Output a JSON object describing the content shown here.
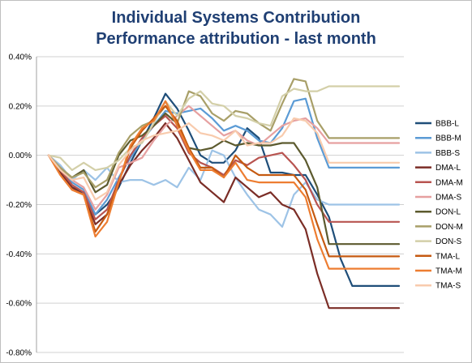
{
  "chart_data": {
    "type": "line",
    "title": "Individual Systems Contribution",
    "subtitle": "Performance attribution - last month",
    "xlabel": "",
    "ylabel": "",
    "ylim": [
      -0.8,
      0.4
    ],
    "yticks": [
      "0.40%",
      "0.20%",
      "0.00%",
      "-0.20%",
      "-0.40%",
      "-0.60%",
      "-0.80%"
    ],
    "ytick_values": [
      0.4,
      0.2,
      0.0,
      -0.2,
      -0.4,
      -0.6,
      -0.8
    ],
    "x": [
      1,
      2,
      3,
      4,
      5,
      6,
      7,
      8,
      9,
      10,
      11,
      12,
      13,
      14,
      15,
      16,
      17,
      18,
      19,
      20,
      21,
      22,
      23,
      24,
      25,
      26,
      27,
      28,
      29,
      30,
      31
    ],
    "grid": "horizontal",
    "legend_position": "right",
    "series": [
      {
        "name": "BBB-L",
        "color": "#1F4E79",
        "values": [
          0,
          -0.07,
          -0.13,
          -0.15,
          -0.24,
          -0.2,
          -0.13,
          -0.03,
          0.06,
          0.15,
          0.25,
          0.19,
          0.1,
          0.0,
          -0.03,
          -0.03,
          0.02,
          0.11,
          0.07,
          -0.07,
          -0.07,
          -0.08,
          -0.08,
          -0.16,
          -0.25,
          -0.42,
          -0.53,
          -0.53,
          -0.53,
          -0.53,
          -0.53
        ]
      },
      {
        "name": "BBB-M",
        "color": "#5B9BD5",
        "values": [
          0,
          -0.06,
          -0.11,
          -0.14,
          -0.24,
          -0.18,
          -0.09,
          -0.01,
          0.06,
          0.12,
          0.18,
          0.17,
          0.18,
          0.19,
          0.15,
          0.1,
          0.12,
          0.1,
          0.06,
          0.05,
          0.11,
          0.22,
          0.23,
          0.07,
          -0.05,
          -0.05,
          -0.05,
          -0.05,
          -0.05,
          -0.05,
          -0.05
        ]
      },
      {
        "name": "BBB-S",
        "color": "#9DC3E6",
        "values": [
          0,
          -0.04,
          -0.1,
          -0.06,
          -0.1,
          -0.05,
          -0.11,
          -0.1,
          -0.1,
          -0.12,
          -0.1,
          -0.13,
          -0.05,
          -0.1,
          0.02,
          0.0,
          -0.09,
          -0.16,
          -0.22,
          -0.24,
          -0.29,
          -0.16,
          -0.11,
          -0.18,
          -0.2,
          -0.2,
          -0.2,
          -0.2,
          -0.2,
          -0.2,
          -0.2
        ]
      },
      {
        "name": "DMA-L",
        "color": "#7B2D26",
        "values": [
          0,
          -0.07,
          -0.13,
          -0.16,
          -0.28,
          -0.24,
          -0.12,
          -0.04,
          0.02,
          0.07,
          0.13,
          0.07,
          -0.02,
          -0.11,
          -0.15,
          -0.19,
          -0.09,
          -0.13,
          -0.17,
          -0.15,
          -0.2,
          -0.22,
          -0.3,
          -0.48,
          -0.62,
          -0.62,
          -0.62,
          -0.62,
          -0.62,
          -0.62,
          -0.62
        ]
      },
      {
        "name": "DMA-M",
        "color": "#B85450",
        "values": [
          0,
          -0.06,
          -0.12,
          -0.15,
          -0.26,
          -0.22,
          -0.1,
          0.0,
          0.07,
          0.12,
          0.16,
          0.11,
          0.01,
          -0.03,
          -0.05,
          -0.08,
          -0.02,
          -0.04,
          -0.01,
          0.0,
          0.01,
          -0.04,
          -0.1,
          -0.2,
          -0.27,
          -0.27,
          -0.27,
          -0.27,
          -0.27,
          -0.27,
          -0.27
        ]
      },
      {
        "name": "DMA-S",
        "color": "#E6A0A0",
        "values": [
          0,
          -0.05,
          -0.1,
          -0.13,
          -0.22,
          -0.16,
          -0.05,
          -0.03,
          -0.01,
          0.06,
          0.12,
          0.16,
          0.2,
          0.16,
          0.12,
          0.08,
          0.1,
          0.06,
          0.04,
          0.08,
          0.12,
          0.14,
          0.15,
          0.11,
          0.05,
          0.05,
          0.05,
          0.05,
          0.05,
          0.05,
          0.05
        ]
      },
      {
        "name": "DON-L",
        "color": "#5C5A2E",
        "values": [
          0,
          -0.06,
          -0.09,
          -0.06,
          -0.15,
          -0.12,
          0.0,
          0.06,
          0.08,
          0.12,
          0.17,
          0.13,
          0.03,
          0.02,
          0.03,
          0.06,
          0.04,
          0.05,
          0.04,
          0.04,
          0.05,
          0.05,
          -0.02,
          -0.13,
          -0.36,
          -0.36,
          -0.36,
          -0.36,
          -0.36,
          -0.36,
          -0.36
        ]
      },
      {
        "name": "DON-M",
        "color": "#A89F68",
        "values": [
          0,
          -0.05,
          -0.09,
          -0.07,
          -0.13,
          -0.1,
          0.01,
          0.08,
          0.12,
          0.14,
          0.2,
          0.13,
          0.26,
          0.24,
          0.17,
          0.14,
          0.18,
          0.17,
          0.13,
          0.1,
          0.21,
          0.31,
          0.3,
          0.14,
          0.07,
          0.07,
          0.07,
          0.07,
          0.07,
          0.07,
          0.07
        ]
      },
      {
        "name": "DON-S",
        "color": "#D3CFA8",
        "values": [
          0,
          -0.01,
          -0.06,
          -0.03,
          -0.06,
          -0.05,
          -0.02,
          0.03,
          0.05,
          0.13,
          0.22,
          0.16,
          0.23,
          0.26,
          0.21,
          0.2,
          0.16,
          0.15,
          0.13,
          0.12,
          0.24,
          0.27,
          0.26,
          0.26,
          0.28,
          0.28,
          0.28,
          0.28,
          0.28,
          0.28,
          0.28
        ]
      },
      {
        "name": "TMA-L",
        "color": "#C55A11",
        "values": [
          0,
          -0.08,
          -0.14,
          -0.16,
          -0.31,
          -0.24,
          -0.11,
          0.03,
          0.1,
          0.15,
          0.2,
          0.14,
          0.03,
          -0.05,
          -0.05,
          -0.09,
          0.0,
          -0.05,
          -0.08,
          -0.08,
          -0.08,
          -0.08,
          -0.14,
          -0.28,
          -0.41,
          -0.41,
          -0.41,
          -0.41,
          -0.41,
          -0.41,
          -0.41
        ]
      },
      {
        "name": "TMA-M",
        "color": "#ED7D31",
        "values": [
          0,
          -0.08,
          -0.14,
          -0.16,
          -0.33,
          -0.27,
          -0.11,
          0.04,
          0.11,
          0.14,
          0.22,
          0.12,
          0.02,
          -0.06,
          -0.06,
          -0.09,
          -0.03,
          -0.1,
          -0.11,
          -0.11,
          -0.11,
          -0.11,
          -0.17,
          -0.34,
          -0.46,
          -0.46,
          -0.46,
          -0.46,
          -0.46,
          -0.46,
          -0.46
        ]
      },
      {
        "name": "TMA-S",
        "color": "#F8CBAD",
        "values": [
          0,
          -0.06,
          -0.1,
          -0.09,
          -0.18,
          -0.15,
          -0.04,
          0.02,
          0.06,
          0.08,
          0.09,
          0.1,
          0.13,
          0.09,
          0.08,
          0.06,
          0.1,
          0.04,
          0.05,
          0.05,
          0.08,
          0.15,
          0.14,
          0.09,
          -0.03,
          -0.03,
          -0.03,
          -0.03,
          -0.03,
          -0.03,
          -0.03
        ]
      }
    ]
  }
}
